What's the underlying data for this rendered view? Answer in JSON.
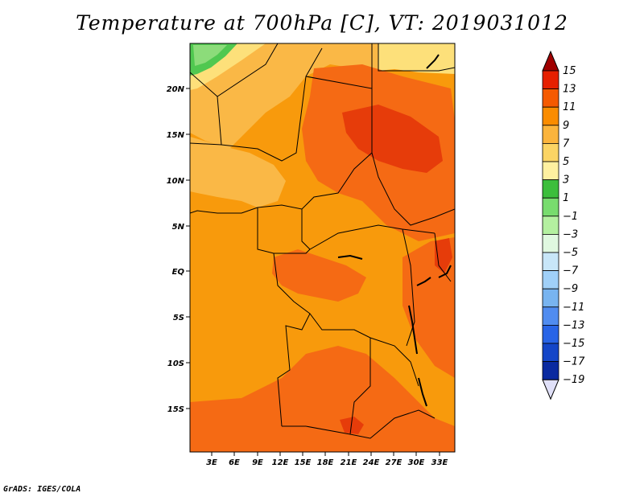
{
  "title": "Temperature at 700hPa [C], VT: 2019031012",
  "credit": "GrADS: IGES/COLA",
  "map": {
    "region": "Central Africa",
    "variable": "Temperature at 700hPa",
    "units": "C",
    "valid_time": "2019031012",
    "lat_labels": [
      "20N",
      "15N",
      "10N",
      "5N",
      "EQ",
      "5S",
      "10S",
      "15S"
    ],
    "lon_labels": [
      "3E",
      "6E",
      "9E",
      "12E",
      "15E",
      "18E",
      "21E",
      "24E",
      "27E",
      "30E",
      "33E"
    ]
  },
  "colorbar": {
    "levels": [
      "15",
      "13",
      "11",
      "9",
      "7",
      "5",
      "3",
      "1",
      "-1",
      "-3",
      "-5",
      "-7",
      "-9",
      "-11",
      "-13",
      "-15",
      "-17",
      "-19"
    ],
    "colors": [
      "#a00000",
      "#e62000",
      "#f55a00",
      "#fa8c00",
      "#fbb43c",
      "#fbd464",
      "#fef0a0",
      "#3cbe3c",
      "#78dc6e",
      "#b4f0a0",
      "#e0f8e0",
      "#c8e6f8",
      "#a0d0f8",
      "#78b4f0",
      "#508cf0",
      "#2864e6",
      "#1446c8",
      "#0a2aa0",
      "#000078",
      "#e0e0f8"
    ]
  },
  "colors": {
    "t_13_15": "#e63c0a",
    "t_11_13": "#f56a14",
    "t_9_11": "#f89a0c",
    "t_7_9": "#fab846",
    "t_5_7": "#fde07a",
    "t_1_3": "#50c850",
    "t_m1_1": "#8cdc7a",
    "border": "#000000"
  }
}
